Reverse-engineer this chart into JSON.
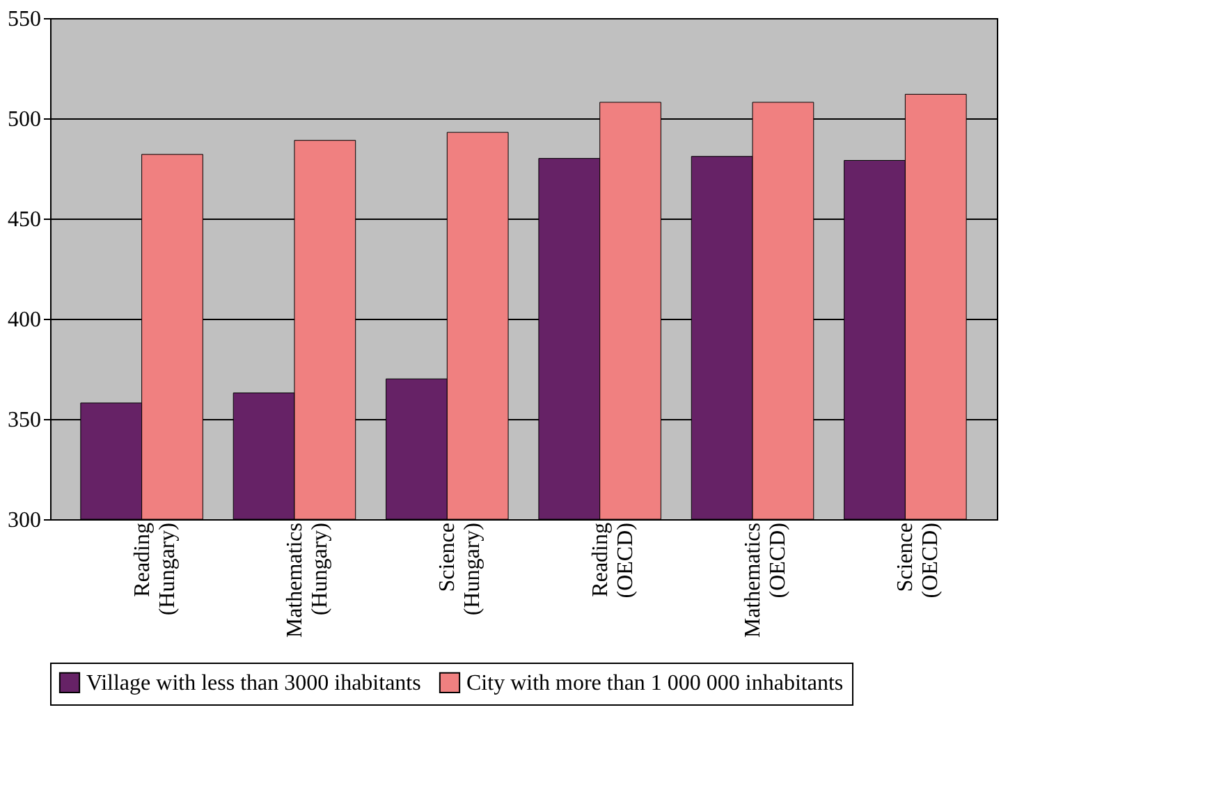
{
  "chart_data": {
    "type": "bar",
    "categories": [
      "Reading (Hungary)",
      "Mathematics (Hungary)",
      "Science (Hungary)",
      "Reading (OECD)",
      "Mathematics (OECD)",
      "Science (OECD)"
    ],
    "series": [
      {
        "name": "Village with less than 3000 ihabitants",
        "color": "#662266",
        "values": [
          358,
          363,
          370,
          480,
          481,
          479
        ]
      },
      {
        "name": "City with more than 1 000 000 inhabitants",
        "color": "#f08080",
        "values": [
          482,
          489,
          493,
          508,
          508,
          512
        ]
      }
    ],
    "ylim": [
      300,
      550
    ],
    "yticks": [
      300,
      350,
      400,
      450,
      500,
      550
    ],
    "grid": "y",
    "legend": "bottom"
  }
}
